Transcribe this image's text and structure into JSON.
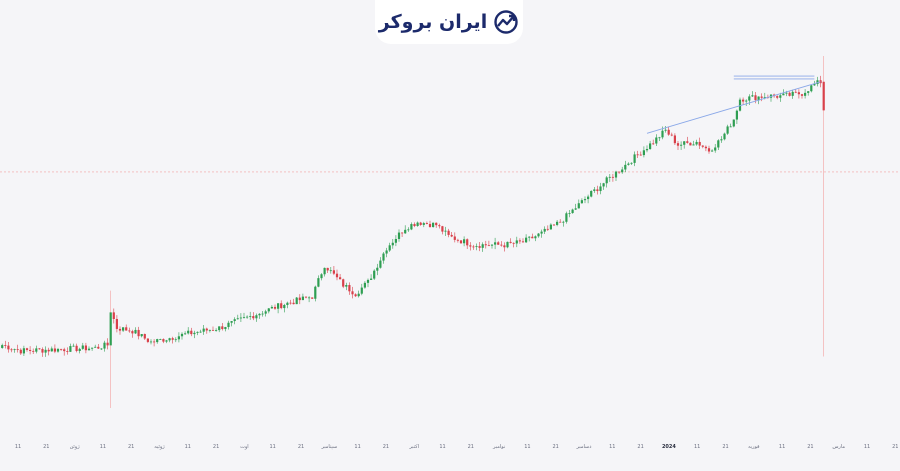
{
  "brand": {
    "name": "ایران بروکر",
    "accent_color": "#1c2a6b",
    "icon": "trend-arrow-circle-icon"
  },
  "colors": {
    "background": "#f5f5f8",
    "up": "#2e9e52",
    "down": "#d9404a",
    "trendline": "#8aa8e8",
    "price_line": "#f2a0a0"
  },
  "chart_data": {
    "type": "candlestick",
    "title": "",
    "xlabel": "",
    "ylabel": "",
    "grid": false,
    "legend": "none",
    "x_ticks": [
      "11",
      "21",
      "ژوئن",
      "11",
      "21",
      "ژوئیه",
      "11",
      "21",
      "اوت",
      "11",
      "21",
      "سپتامبر",
      "11",
      "21",
      "اکتبر",
      "11",
      "21",
      "نوامبر",
      "11",
      "21",
      "دسامبر",
      "11",
      "21",
      "2024",
      "11",
      "21",
      "فوریه",
      "11",
      "21",
      "مارس",
      "11",
      "21"
    ],
    "bold_tick": "2024",
    "y_range": [
      0,
      100
    ],
    "price_line_level": 72.5,
    "anchors": [
      [
        0,
        12
      ],
      [
        6,
        10
      ],
      [
        30,
        11
      ],
      [
        34,
        12
      ],
      [
        35,
        24
      ],
      [
        37,
        18
      ],
      [
        42,
        17
      ],
      [
        48,
        13
      ],
      [
        60,
        16
      ],
      [
        70,
        18
      ],
      [
        80,
        22
      ],
      [
        90,
        26
      ],
      [
        100,
        29
      ],
      [
        104,
        40
      ],
      [
        110,
        33
      ],
      [
        114,
        30
      ],
      [
        118,
        34
      ],
      [
        124,
        46
      ],
      [
        130,
        53
      ],
      [
        134,
        55
      ],
      [
        140,
        54
      ],
      [
        144,
        50
      ],
      [
        152,
        47
      ],
      [
        162,
        47
      ],
      [
        168,
        48
      ],
      [
        174,
        51
      ],
      [
        180,
        55
      ],
      [
        190,
        65
      ],
      [
        200,
        74
      ],
      [
        210,
        83
      ],
      [
        214,
        87
      ],
      [
        218,
        82
      ],
      [
        224,
        83
      ],
      [
        228,
        80
      ],
      [
        232,
        84
      ],
      [
        236,
        91
      ],
      [
        238,
        98
      ],
      [
        246,
        99
      ],
      [
        252,
        99
      ],
      [
        258,
        100
      ],
      [
        262,
        103
      ],
      [
        264,
        104
      ],
      [
        265,
        94
      ]
    ],
    "last_candle": {
      "open": 104,
      "high": 113,
      "low": 8,
      "close": 94
    },
    "spike_candle": {
      "index": 35,
      "high": 31,
      "low": -10
    },
    "trendlines": [
      {
        "from": [
          208,
          86
        ],
        "to": [
          264,
          104
        ]
      },
      {
        "from": [
          236,
          106
        ],
        "to": [
          262,
          106
        ]
      },
      {
        "from": [
          236,
          105
        ],
        "to": [
          262,
          105
        ]
      }
    ]
  }
}
